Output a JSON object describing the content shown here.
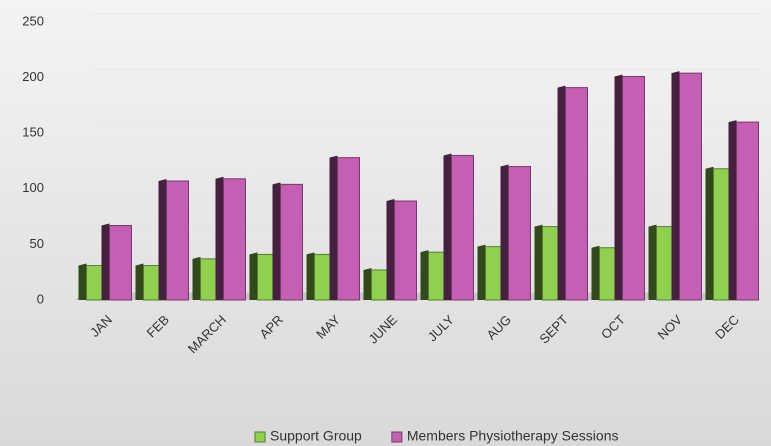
{
  "chart_data": {
    "type": "bar",
    "categories": [
      "JAN",
      "FEB",
      "MARCH",
      "APR",
      "MAY",
      "JUNE",
      "JULY",
      "AUG",
      "SEPT",
      "OCT",
      "NOV",
      "DEC"
    ],
    "series": [
      {
        "name": "Support Group",
        "color": "#8fd14f",
        "values": [
          31,
          31,
          37,
          41,
          41,
          27,
          43,
          48,
          66,
          47,
          66,
          118
        ]
      },
      {
        "name": "Members Physiotherapy Sessions",
        "color": "#c55fb3",
        "values": [
          67,
          107,
          109,
          104,
          128,
          89,
          130,
          120,
          191,
          201,
          204,
          160
        ]
      }
    ],
    "ylim": [
      0,
      250
    ],
    "yticks": [
      0,
      50,
      100,
      150,
      200,
      250
    ],
    "grid": true,
    "legend": "bottom"
  }
}
